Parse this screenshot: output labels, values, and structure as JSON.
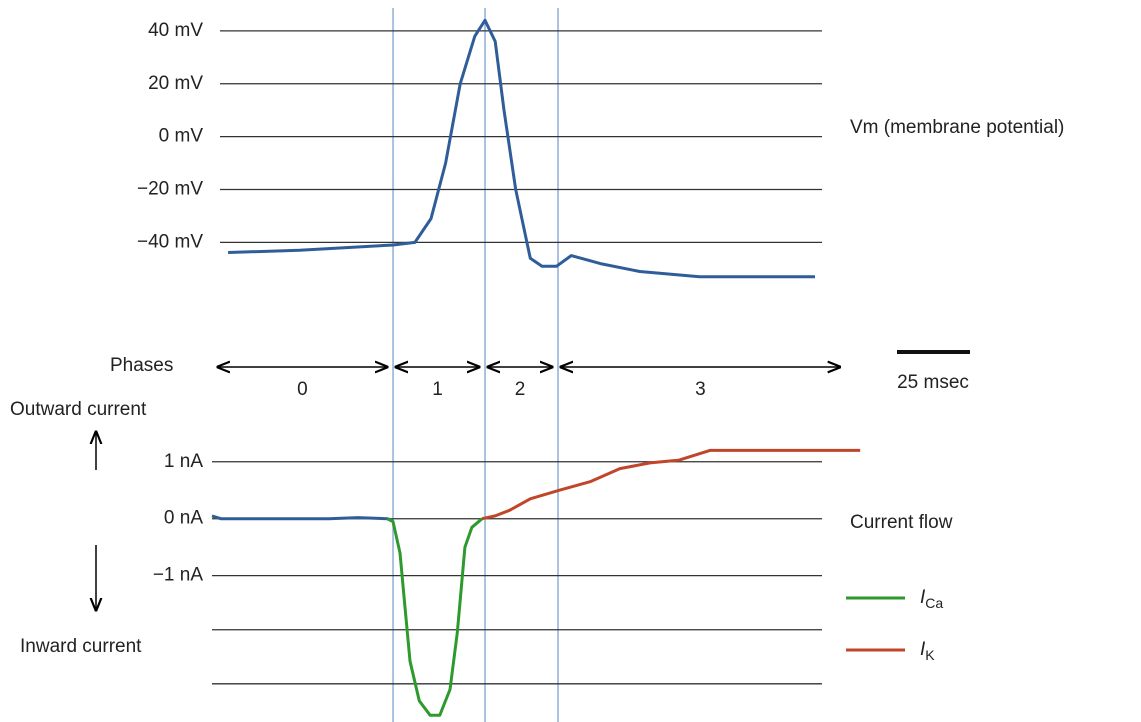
{
  "chart_data": [
    {
      "type": "line",
      "series": [
        {
          "name": "Vm (membrane potential)",
          "color": "#2f5d9a",
          "x": [
            5.5,
            30,
            62,
            69.5,
            75,
            80,
            85,
            90,
            93.5,
            97,
            100,
            104,
            109,
            113,
            118,
            123,
            133,
            146.5,
            167,
            206.5
          ],
          "values": [
            -43.8,
            -43,
            -41,
            -40,
            -31,
            -10,
            20,
            38,
            44,
            36,
            10,
            -20,
            -46,
            -49,
            -49,
            -45,
            -48,
            -51,
            -53,
            -53
          ]
        }
      ],
      "ylim": [
        -58,
        46
      ],
      "yticks": [
        {
          "value": 40,
          "label": "40 mV"
        },
        {
          "value": 20,
          "label": "20 mV"
        },
        {
          "value": 0,
          "label": "0 mV"
        },
        {
          "value": -20,
          "label": "−20 mV"
        },
        {
          "value": -40,
          "label": "−40 mV"
        }
      ],
      "grid": true
    },
    {
      "type": "line",
      "series": [
        {
          "color": "#2f5d9a",
          "x": [
            0,
            3,
            40,
            50,
            60,
            62
          ],
          "values": [
            0.05,
            0,
            0,
            0.02,
            0,
            -0.03
          ]
        },
        {
          "name": "ICa",
          "color": "#2e9a2e",
          "x": [
            60,
            62,
            64.4,
            66,
            67.8,
            71,
            74.7,
            78,
            81.5,
            84,
            86.6,
            89,
            92.5
          ],
          "values": [
            0,
            -0.05,
            -0.6,
            -1.5,
            -2.5,
            -3.2,
            -3.45,
            -3.45,
            -3,
            -2,
            -0.5,
            -0.15,
            0
          ]
        },
        {
          "name": "IK",
          "color": "#c0462a",
          "x": [
            92.5,
            97,
            102,
            109,
            119,
            129.5,
            139.7,
            150,
            160,
            170.5,
            222
          ],
          "values": [
            0,
            0.05,
            0.15,
            0.35,
            0.5,
            0.65,
            0.88,
            0.98,
            1.03,
            1.2,
            1.2
          ]
        }
      ],
      "ylim": [
        -3.5,
        1.4
      ],
      "yticks": [
        {
          "value": 1,
          "label": "1 nA"
        },
        {
          "value": 0,
          "label": "0 nA"
        },
        {
          "value": -1,
          "label": "−1 nA"
        },
        {
          "value": -1.95,
          "label": null
        },
        {
          "value": -2.9,
          "label": null
        }
      ],
      "grid": true,
      "outward_label": "Outward current",
      "inward_label": "Inward current",
      "legend_title": "Current flow"
    }
  ],
  "phases": {
    "title": "Phases",
    "labels": [
      "0",
      "1",
      "2",
      "3"
    ],
    "boundaries": [
      2,
      62,
      93.5,
      118.5,
      215
    ]
  },
  "scale_bar": {
    "value": 25,
    "label": "25 msec"
  }
}
